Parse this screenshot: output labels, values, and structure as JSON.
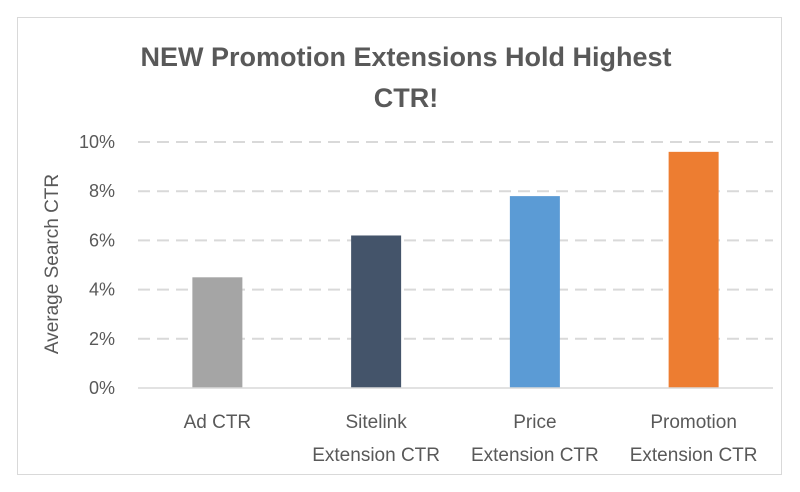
{
  "chart_data": {
    "type": "bar",
    "title_lines": [
      "NEW Promotion Extensions Hold Highest",
      "CTR!"
    ],
    "ylabel": "Average Search CTR",
    "xlabel": "",
    "ylim": [
      0,
      10
    ],
    "y_ticks": [
      {
        "value": 0,
        "label": "0%"
      },
      {
        "value": 2,
        "label": "2%"
      },
      {
        "value": 4,
        "label": "4%"
      },
      {
        "value": 6,
        "label": "6%"
      },
      {
        "value": 8,
        "label": "8%"
      },
      {
        "value": 10,
        "label": "10%"
      }
    ],
    "grid": "horizontal-dashed",
    "legend": "none",
    "categories": [
      {
        "lines": [
          "Ad CTR"
        ],
        "value": 4.5,
        "color": "#a5a5a5"
      },
      {
        "lines": [
          "Sitelink",
          "Extension CTR"
        ],
        "value": 6.2,
        "color": "#44546a"
      },
      {
        "lines": [
          "Price",
          "Extension CTR"
        ],
        "value": 7.8,
        "color": "#5b9bd5"
      },
      {
        "lines": [
          "Promotion",
          "Extension CTR"
        ],
        "value": 9.6,
        "color": "#ed7d31"
      }
    ]
  }
}
